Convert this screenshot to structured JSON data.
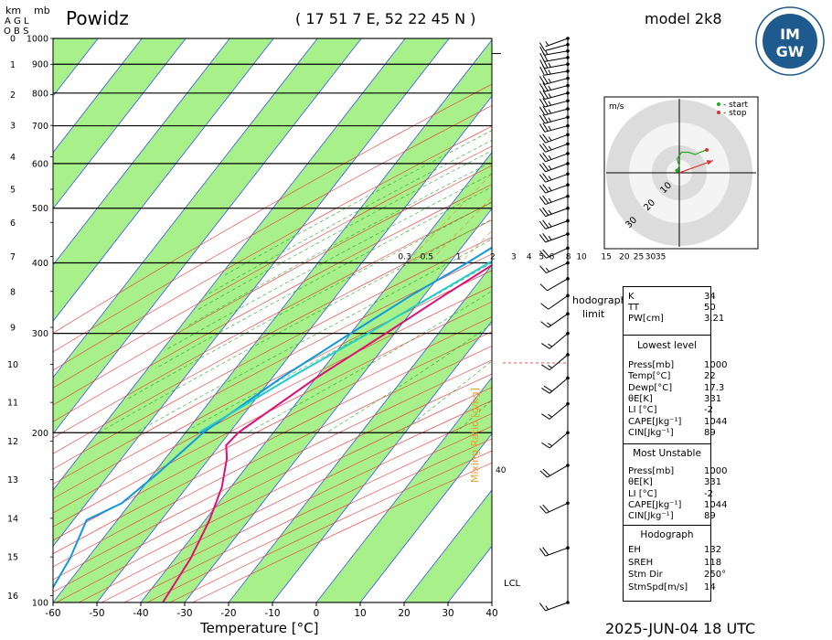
{
  "header": {
    "station": "Powidz",
    "coordinates": "( 17 51 7 E, 52 22 45 N )",
    "model": "model 2k8",
    "axis_km": "km",
    "axis_mb": "mb",
    "agl": "A G L",
    "obs": "O B S",
    "datetime": "2025-JUN-04   18 UTC",
    "logo_text": "IM GW"
  },
  "hodograph_panel": {
    "unit": "m/s",
    "legend_start": "- start",
    "legend_stop": "- stop",
    "ring_labels": [
      "10",
      "20",
      "30"
    ],
    "limit_label_1": "hodograph",
    "limit_label_2": "limit"
  },
  "side_labels": {
    "lcl": "LCL",
    "mixing_ratio": "Mixing Ratio [g/kg]",
    "mixing_40": "40"
  },
  "table_indices": {
    "rows": [
      {
        "label": "K",
        "value": "34"
      },
      {
        "label": "TT",
        "value": "50"
      },
      {
        "label": "PW[cm]",
        "value": "3.21"
      }
    ]
  },
  "table_lowest": {
    "title": "Lowest level",
    "rows": [
      {
        "label": "Press[mb]",
        "value": "1000"
      },
      {
        "label": "Temp[°C]",
        "value": "22"
      },
      {
        "label": "Dewp[°C]",
        "value": "17.3"
      },
      {
        "label": "θE[K]",
        "value": "331"
      },
      {
        "label": "LI [°C]",
        "value": "-2"
      },
      {
        "label": "CAPE[Jkg⁻¹]",
        "value": "1044"
      },
      {
        "label": "CIN[Jkg⁻¹]",
        "value": "89"
      }
    ]
  },
  "table_mu": {
    "title": "Most Unstable",
    "rows": [
      {
        "label": "Press[mb]",
        "value": "1000"
      },
      {
        "label": "θE[K]",
        "value": "331"
      },
      {
        "label": "LI [°C]",
        "value": "-2"
      },
      {
        "label": "CAPE[Jkg⁻¹]",
        "value": "1044"
      },
      {
        "label": "CIN[Jkg⁻¹]",
        "value": "89"
      }
    ]
  },
  "table_hodo": {
    "title": "Hodograph",
    "rows": [
      {
        "label": "EH",
        "value": "132"
      },
      {
        "label": "SREH",
        "value": "118"
      },
      {
        "label": "Stm Dir",
        "value": "250°"
      },
      {
        "label": "StmSpd[m/s]",
        "value": "14"
      }
    ]
  },
  "colors": {
    "temperature": "#dd1177",
    "dewpoint": "#1199dd",
    "parcel": "#22cccc",
    "isotherm_band": "#a8f08a",
    "isotherm": "#3355ee",
    "dry_adiabat": "#ee3333",
    "moist_adiabat": "#22aa22",
    "mixing_ratio": "#ee8822"
  },
  "chart_data": {
    "type": "line",
    "xlabel": "Temperature [°C]",
    "ylabel": "mb",
    "xlim": [
      -60,
      40
    ],
    "ylim": [
      1000,
      100
    ],
    "x_ticks": [
      "-60",
      "-50",
      "-40",
      "-30",
      "-20",
      "-10",
      "0",
      "10",
      "20",
      "30",
      "40"
    ],
    "pressure_ticks": [
      "100",
      "200",
      "300",
      "400",
      "500",
      "600",
      "700",
      "800",
      "900",
      "1000"
    ],
    "km_ticks": [
      "0",
      "1",
      "2",
      "3",
      "4",
      "5",
      "6",
      "7",
      "8",
      "9",
      "10",
      "11",
      "12",
      "13",
      "14",
      "15",
      "16"
    ],
    "mixing_ratio_labels": [
      "0.3",
      "0.5",
      "1",
      "2",
      "3",
      "4",
      "5",
      "6",
      "8",
      "10",
      "15",
      "20",
      "25",
      "30",
      "35"
    ],
    "series": [
      {
        "name": "temperature",
        "points": [
          [
            1000,
            22
          ],
          [
            950,
            22.5
          ],
          [
            900,
            19
          ],
          [
            850,
            16
          ],
          [
            800,
            11.5
          ],
          [
            750,
            8
          ],
          [
            700,
            5.5
          ],
          [
            650,
            2
          ],
          [
            600,
            -1
          ],
          [
            550,
            -5
          ],
          [
            500,
            -9.5
          ],
          [
            450,
            -14
          ],
          [
            400,
            -19.5
          ],
          [
            350,
            -25.5
          ],
          [
            300,
            -32
          ],
          [
            250,
            -40
          ],
          [
            200,
            -48
          ],
          [
            190,
            -48.5
          ],
          [
            180,
            -46
          ],
          [
            160,
            -42
          ],
          [
            140,
            -39
          ],
          [
            120,
            -36.5
          ],
          [
            100,
            -35
          ]
        ]
      },
      {
        "name": "dewpoint",
        "points": [
          [
            1000,
            17.3
          ],
          [
            970,
            15
          ],
          [
            930,
            13.5
          ],
          [
            900,
            12
          ],
          [
            850,
            10.5
          ],
          [
            800,
            8
          ],
          [
            750,
            4.5
          ],
          [
            700,
            0.5
          ],
          [
            650,
            -3
          ],
          [
            600,
            -6.5
          ],
          [
            550,
            -11
          ],
          [
            500,
            -15
          ],
          [
            450,
            -20.5
          ],
          [
            400,
            -26
          ],
          [
            350,
            -33
          ],
          [
            300,
            -40
          ],
          [
            250,
            -48
          ],
          [
            200,
            -56
          ],
          [
            170,
            -59
          ],
          [
            150,
            -62
          ],
          [
            140,
            -67
          ],
          [
            120,
            -64
          ],
          [
            100,
            -62
          ]
        ]
      },
      {
        "name": "parcel",
        "points": [
          [
            1000,
            22
          ],
          [
            940,
            16
          ],
          [
            900,
            14
          ],
          [
            850,
            12
          ],
          [
            800,
            9.5
          ],
          [
            700,
            4
          ],
          [
            600,
            -2
          ],
          [
            500,
            -10
          ],
          [
            400,
            -21
          ],
          [
            300,
            -36
          ],
          [
            250,
            -46
          ],
          [
            200,
            -57
          ]
        ]
      }
    ],
    "lcl_pressure": 940,
    "wind_barbs": [
      {
        "p": 1000,
        "dir": 250,
        "spd": 5
      },
      {
        "p": 975,
        "dir": 255,
        "spd": 10
      },
      {
        "p": 950,
        "dir": 260,
        "spd": 15
      },
      {
        "p": 925,
        "dir": 260,
        "spd": 20
      },
      {
        "p": 900,
        "dir": 260,
        "spd": 25
      },
      {
        "p": 875,
        "dir": 260,
        "spd": 25
      },
      {
        "p": 850,
        "dir": 255,
        "spd": 25
      },
      {
        "p": 825,
        "dir": 255,
        "spd": 25
      },
      {
        "p": 800,
        "dir": 255,
        "spd": 25
      },
      {
        "p": 775,
        "dir": 255,
        "spd": 25
      },
      {
        "p": 750,
        "dir": 255,
        "spd": 25
      },
      {
        "p": 725,
        "dir": 255,
        "spd": 25
      },
      {
        "p": 700,
        "dir": 255,
        "spd": 25
      },
      {
        "p": 675,
        "dir": 250,
        "spd": 25
      },
      {
        "p": 650,
        "dir": 250,
        "spd": 25
      },
      {
        "p": 625,
        "dir": 250,
        "spd": 25
      },
      {
        "p": 600,
        "dir": 250,
        "spd": 25
      },
      {
        "p": 575,
        "dir": 250,
        "spd": 25
      },
      {
        "p": 550,
        "dir": 250,
        "spd": 25
      },
      {
        "p": 525,
        "dir": 250,
        "spd": 25
      },
      {
        "p": 500,
        "dir": 250,
        "spd": 25
      },
      {
        "p": 475,
        "dir": 250,
        "spd": 25
      },
      {
        "p": 450,
        "dir": 250,
        "spd": 25
      },
      {
        "p": 425,
        "dir": 245,
        "spd": 20
      },
      {
        "p": 400,
        "dir": 245,
        "spd": 15
      },
      {
        "p": 375,
        "dir": 240,
        "spd": 10
      },
      {
        "p": 350,
        "dir": 235,
        "spd": 10
      },
      {
        "p": 325,
        "dir": 235,
        "spd": 15
      },
      {
        "p": 300,
        "dir": 230,
        "spd": 15
      },
      {
        "p": 275,
        "dir": 230,
        "spd": 15
      },
      {
        "p": 250,
        "dir": 230,
        "spd": 20
      },
      {
        "p": 225,
        "dir": 230,
        "spd": 15
      },
      {
        "p": 200,
        "dir": 230,
        "spd": 15
      },
      {
        "p": 175,
        "dir": 240,
        "spd": 20
      },
      {
        "p": 150,
        "dir": 245,
        "spd": 20
      },
      {
        "p": 125,
        "dir": 250,
        "spd": 20
      },
      {
        "p": 100,
        "dir": 250,
        "spd": 15
      }
    ],
    "hodograph_path": [
      [
        -0.5,
        0.5
      ],
      [
        0,
        1.5
      ],
      [
        -0.5,
        3
      ],
      [
        0.5,
        4.5
      ],
      [
        2,
        4.5
      ],
      [
        3.5,
        4
      ],
      [
        4.5,
        4.5
      ],
      [
        6,
        5
      ]
    ],
    "storm_motion": {
      "dir": 250,
      "spd": 14
    }
  }
}
